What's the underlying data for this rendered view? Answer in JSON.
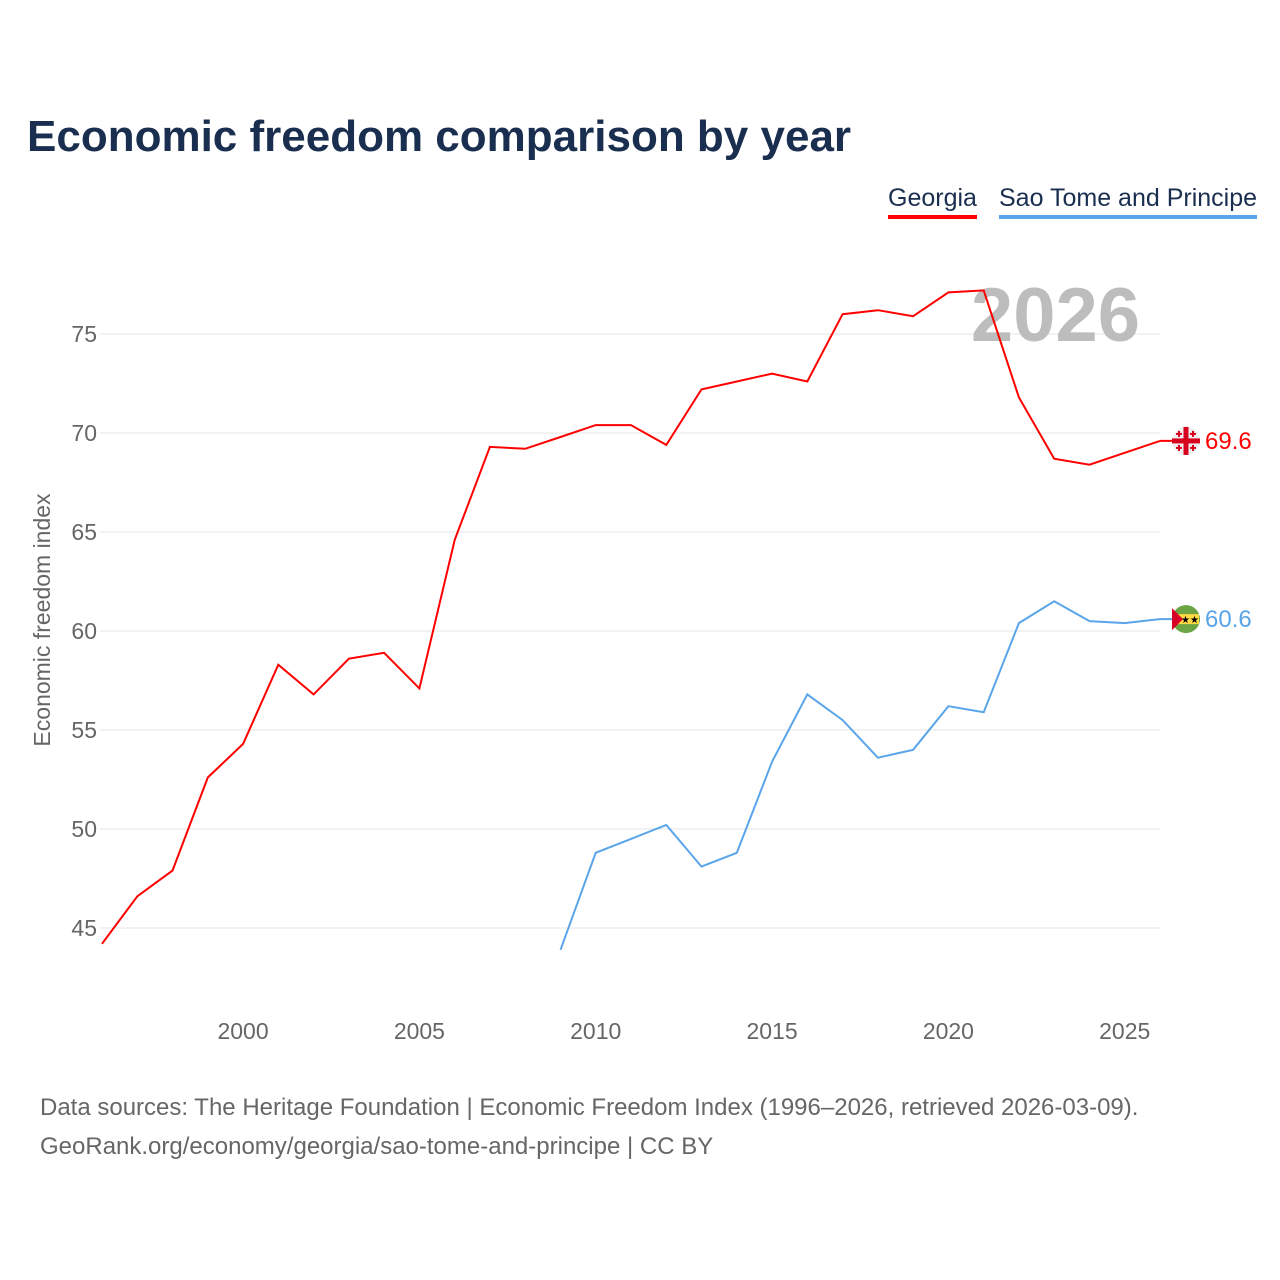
{
  "chart_data": {
    "type": "line",
    "title": "Economic freedom comparison by year",
    "ylabel": "Economic freedom index",
    "xlabel": "",
    "xlim": [
      1996,
      2026
    ],
    "ylim": [
      41,
      78
    ],
    "yticks": [
      45,
      50,
      55,
      60,
      65,
      70,
      75
    ],
    "xticks": [
      2000,
      2005,
      2010,
      2015,
      2020,
      2025
    ],
    "grid": "horizontal",
    "legend": "top-right",
    "year_watermark": "2026",
    "series": [
      {
        "name": "Georgia",
        "color": "#ff0000",
        "end_label": "69.6",
        "x": [
          1996,
          1997,
          1998,
          1999,
          2000,
          2001,
          2002,
          2003,
          2004,
          2005,
          2006,
          2007,
          2008,
          2009,
          2010,
          2011,
          2012,
          2013,
          2014,
          2015,
          2016,
          2017,
          2018,
          2019,
          2020,
          2021,
          2022,
          2023,
          2024,
          2025,
          2026
        ],
        "values": [
          44.2,
          46.6,
          47.9,
          52.6,
          54.3,
          58.3,
          56.8,
          58.6,
          58.9,
          57.1,
          64.6,
          69.3,
          69.2,
          69.8,
          70.4,
          70.4,
          69.4,
          72.2,
          72.6,
          73.0,
          72.6,
          76.0,
          76.2,
          75.9,
          77.1,
          77.2,
          71.8,
          68.7,
          68.4,
          69.0,
          69.6
        ]
      },
      {
        "name": "Sao Tome and Principe",
        "color": "#5aa5ea",
        "end_label": "60.6",
        "x": [
          2009,
          2010,
          2011,
          2012,
          2013,
          2014,
          2015,
          2016,
          2017,
          2018,
          2019,
          2020,
          2021,
          2022,
          2023,
          2024,
          2025,
          2026
        ],
        "values": [
          43.9,
          48.8,
          49.5,
          50.2,
          48.1,
          48.8,
          53.4,
          56.8,
          55.5,
          53.6,
          54.0,
          56.2,
          55.9,
          60.4,
          61.5,
          60.5,
          60.4,
          60.6
        ]
      }
    ]
  },
  "source": {
    "line1": "Data sources: The Heritage Foundation | Economic Freedom Index (1996–2026, retrieved 2026-03-09).",
    "line2": "GeoRank.org/economy/georgia/sao-tome-and-principe | CC BY"
  }
}
